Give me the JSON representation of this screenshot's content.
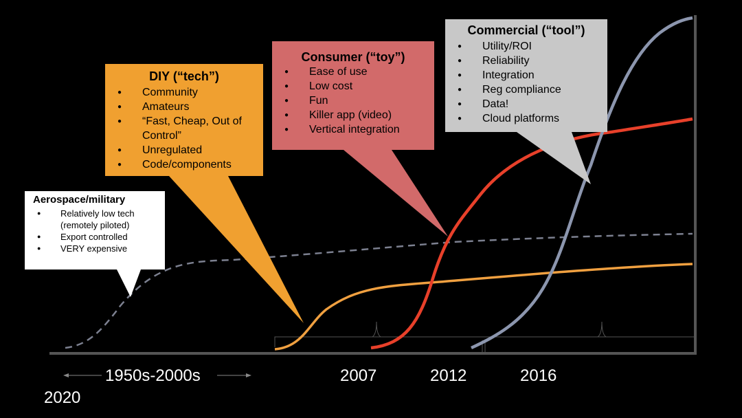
{
  "colors": {
    "background": "#000000",
    "aerospace": "#ffffff",
    "diy": "#f0a030",
    "consumer": "#d26a6a",
    "commercial": "#c8c8c8",
    "dashed_curve": "#7c8090",
    "orange_curve": "#f0a040",
    "red_curve": "#e8402a",
    "blue_curve": "#8c96ae",
    "axis": "#555555"
  },
  "callouts": {
    "aerospace": {
      "title": "Aerospace/military",
      "items": [
        "Relatively low tech (remotely piloted)",
        "Export controlled",
        "VERY expensive"
      ]
    },
    "diy": {
      "title": "DIY (“tech”)",
      "items": [
        "Community",
        "Amateurs",
        "“Fast, Cheap, Out of Control”",
        "Unregulated",
        "Code/components"
      ]
    },
    "consumer": {
      "title": "Consumer (“toy”)",
      "items": [
        "Ease of use",
        "Low cost",
        "Fun",
        "Killer app (video)",
        "Vertical integration"
      ]
    },
    "commercial": {
      "title": "Commercial (“tool”)",
      "items": [
        "Utility/ROI",
        "Reliability",
        "Integration",
        "Reg compliance",
        "Data!",
        "Cloud platforms"
      ]
    }
  },
  "axis_labels": {
    "era": "1950s-2000s",
    "y2007": "2007",
    "y2012": "2012",
    "y2016": "2016",
    "y2020": "2020"
  }
}
